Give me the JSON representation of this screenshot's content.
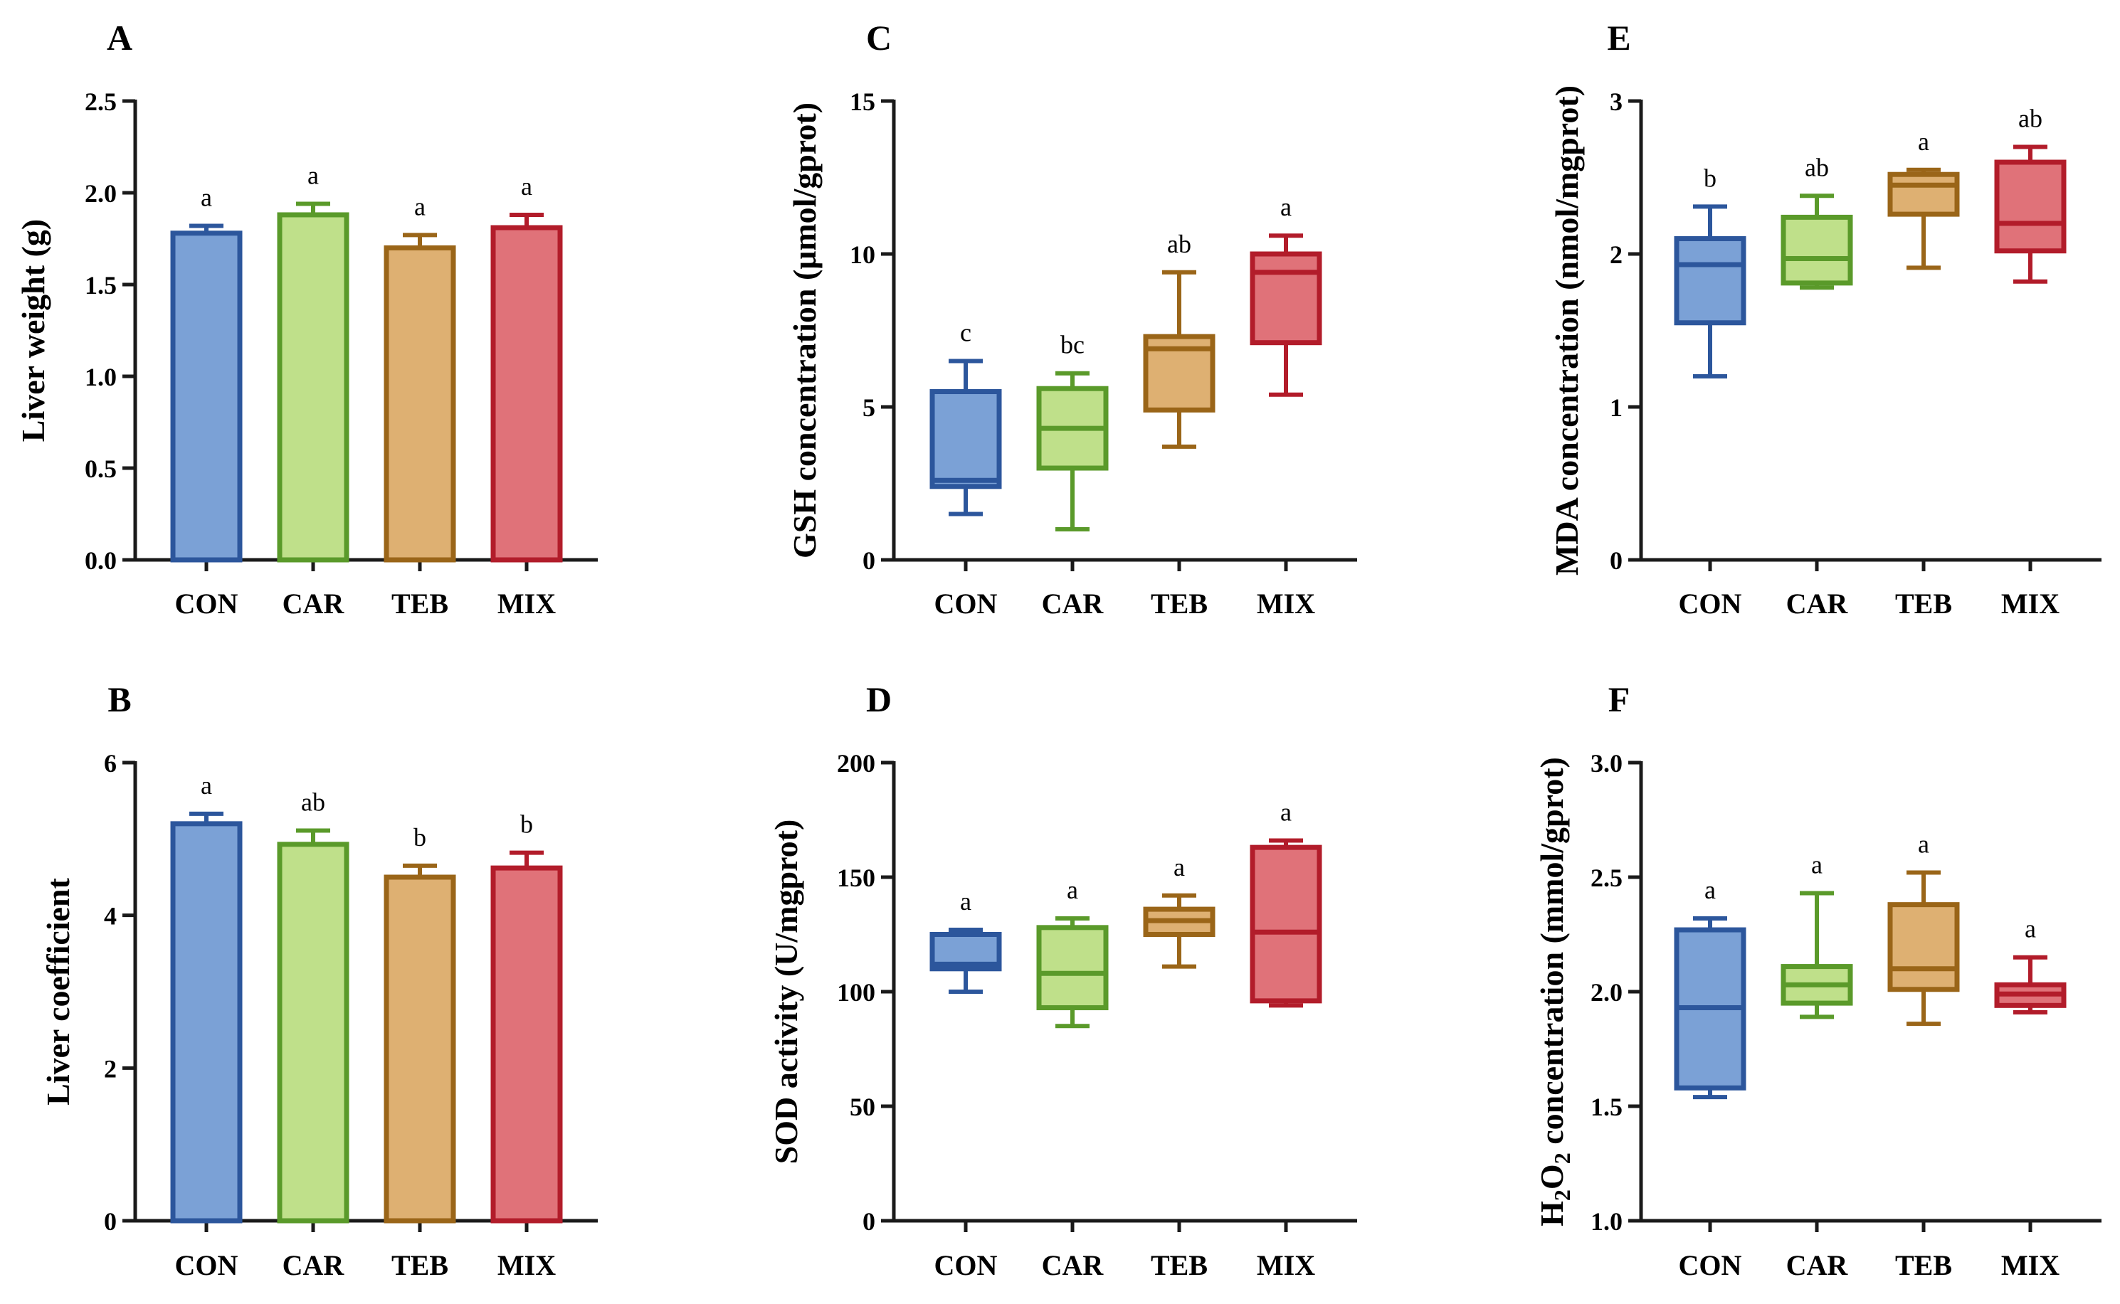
{
  "colors": {
    "CON": {
      "fill": "#7ba1d6",
      "stroke": "#2c569c"
    },
    "CAR": {
      "fill": "#bfe08a",
      "stroke": "#5a9a2a"
    },
    "TEB": {
      "fill": "#deb072",
      "stroke": "#9a6518"
    },
    "MIX": {
      "fill": "#e07279",
      "stroke": "#b21c2a"
    }
  },
  "chart_data": [
    {
      "panel": "A",
      "type": "bar",
      "ylabel": "Liver weight (g)",
      "categories": [
        "CON",
        "CAR",
        "TEB",
        "MIX"
      ],
      "values": [
        1.78,
        1.88,
        1.7,
        1.81
      ],
      "errors": [
        0.04,
        0.06,
        0.07,
        0.07
      ],
      "letters": [
        "a",
        "a",
        "a",
        "a"
      ],
      "ylim": [
        0,
        2.5
      ],
      "yticks": [
        "0.0",
        "0.5",
        "1.0",
        "1.5",
        "2.0",
        "2.5"
      ]
    },
    {
      "panel": "B",
      "type": "bar",
      "ylabel": "Liver coefficient",
      "categories": [
        "CON",
        "CAR",
        "TEB",
        "MIX"
      ],
      "values": [
        5.2,
        4.93,
        4.5,
        4.62
      ],
      "errors": [
        0.13,
        0.18,
        0.15,
        0.2
      ],
      "letters": [
        "a",
        "ab",
        "b",
        "b"
      ],
      "ylim": [
        0,
        6
      ],
      "yticks": [
        "0",
        "2",
        "4",
        "6"
      ]
    },
    {
      "panel": "C",
      "type": "box",
      "ylabel": "GSH concentration (μmol/gprot)",
      "categories": [
        "CON",
        "CAR",
        "TEB",
        "MIX"
      ],
      "boxes": [
        {
          "min": 1.5,
          "q1": 2.4,
          "median": 2.6,
          "q3": 5.5,
          "max": 6.5
        },
        {
          "min": 1.0,
          "q1": 3.0,
          "median": 4.3,
          "q3": 5.6,
          "max": 6.1
        },
        {
          "min": 3.7,
          "q1": 4.9,
          "median": 6.9,
          "q3": 7.3,
          "max": 9.4
        },
        {
          "min": 5.4,
          "q1": 7.1,
          "median": 9.4,
          "q3": 10.0,
          "max": 10.6
        }
      ],
      "letters": [
        "c",
        "bc",
        "ab",
        "a"
      ],
      "ylim": [
        0,
        15
      ],
      "yticks": [
        "0",
        "5",
        "10",
        "15"
      ]
    },
    {
      "panel": "D",
      "type": "box",
      "ylabel": "SOD activity (U/mgprot)",
      "categories": [
        "CON",
        "CAR",
        "TEB",
        "MIX"
      ],
      "boxes": [
        {
          "min": 100,
          "q1": 110,
          "median": 112,
          "q3": 125,
          "max": 127
        },
        {
          "min": 85,
          "q1": 93,
          "median": 108,
          "q3": 128,
          "max": 132
        },
        {
          "min": 111,
          "q1": 125,
          "median": 131,
          "q3": 136,
          "max": 142
        },
        {
          "min": 94,
          "q1": 96,
          "median": 126,
          "q3": 163,
          "max": 166
        }
      ],
      "letters": [
        "a",
        "a",
        "a",
        "a"
      ],
      "ylim": [
        0,
        200
      ],
      "yticks": [
        "0",
        "50",
        "100",
        "150",
        "200"
      ]
    },
    {
      "panel": "E",
      "type": "box",
      "ylabel": "MDA concentration (nmol/mgprot)",
      "categories": [
        "CON",
        "CAR",
        "TEB",
        "MIX"
      ],
      "boxes": [
        {
          "min": 1.2,
          "q1": 1.55,
          "median": 1.93,
          "q3": 2.1,
          "max": 2.31
        },
        {
          "min": 1.78,
          "q1": 1.81,
          "median": 1.97,
          "q3": 2.24,
          "max": 2.38
        },
        {
          "min": 1.91,
          "q1": 2.26,
          "median": 2.45,
          "q3": 2.52,
          "max": 2.55
        },
        {
          "min": 1.82,
          "q1": 2.02,
          "median": 2.2,
          "q3": 2.6,
          "max": 2.7
        }
      ],
      "letters": [
        "b",
        "ab",
        "a",
        "ab"
      ],
      "ylim": [
        0,
        3
      ],
      "yticks": [
        "0",
        "1",
        "2",
        "3"
      ]
    },
    {
      "panel": "F",
      "type": "box",
      "ylabel": "H2O2 concentration (mmol/gprot)",
      "ylabel_parts": {
        "pre": "H",
        "sub1": "2",
        "mid": "O",
        "sub2": "2",
        "post": " concentration (mmol/gprot)"
      },
      "categories": [
        "CON",
        "CAR",
        "TEB",
        "MIX"
      ],
      "boxes": [
        {
          "min": 1.54,
          "q1": 1.58,
          "median": 1.93,
          "q3": 2.27,
          "max": 2.32
        },
        {
          "min": 1.89,
          "q1": 1.95,
          "median": 2.03,
          "q3": 2.11,
          "max": 2.43
        },
        {
          "min": 1.86,
          "q1": 2.01,
          "median": 2.1,
          "q3": 2.38,
          "max": 2.52
        },
        {
          "min": 1.91,
          "q1": 1.94,
          "median": 1.99,
          "q3": 2.03,
          "max": 2.15
        }
      ],
      "letters": [
        "a",
        "a",
        "a",
        "a"
      ],
      "ylim": [
        1.0,
        3.0
      ],
      "yticks": [
        "1.0",
        "1.5",
        "2.0",
        "2.5",
        "3.0"
      ]
    }
  ]
}
